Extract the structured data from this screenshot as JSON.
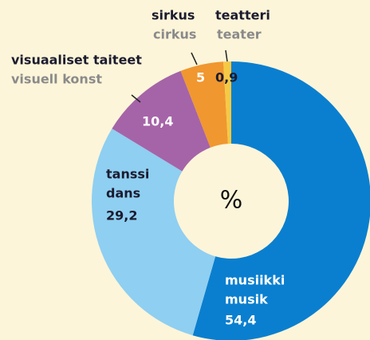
{
  "chart_data": {
    "type": "donut",
    "center_label": "%",
    "categories": [
      "musiikki",
      "tanssi",
      "visuaaliset taiteet",
      "sirkus",
      "teatteri"
    ],
    "categories_sv": [
      "musik",
      "dans",
      "visuell konst",
      "cirkus",
      "teater"
    ],
    "values": [
      54.4,
      29.2,
      10.4,
      5,
      0.9
    ],
    "value_labels": [
      "54,4",
      "29,2",
      "10,4",
      "5",
      "0,9"
    ],
    "colors": [
      "#0a7fcf",
      "#8fcff1",
      "#a564a8",
      "#f0972f",
      "#f6c945"
    ]
  }
}
